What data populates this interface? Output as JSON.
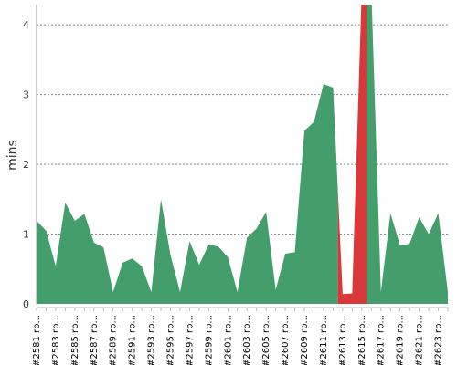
{
  "chart_data": {
    "type": "area",
    "ylabel": "mins",
    "categories": [
      "#2581 rp...",
      null,
      "#2583 rp...",
      null,
      "#2585 rp...",
      null,
      "#2587 rp...",
      null,
      "#2589 rp...",
      null,
      "#2591 rp...",
      null,
      "#2593 rp...",
      null,
      "#2595 rp...",
      null,
      "#2597 rp...",
      null,
      "#2599 rp...",
      null,
      "#2601 rp...",
      null,
      "#2603 rp...",
      null,
      "#2605 rp...",
      null,
      "#2607 rp...",
      null,
      "#2609 rp...",
      null,
      "#2611 rp...",
      null,
      "#2613 rp...",
      null,
      "#2615 rp...",
      null,
      "#2617 rp...",
      null,
      "#2619 rp...",
      null,
      "#2621 rp...",
      null,
      "#2623 rp...",
      null
    ],
    "series": [
      {
        "color": "#449e6c",
        "values": [
          1.19,
          1.05,
          0.54,
          1.45,
          1.19,
          1.29,
          0.88,
          0.81,
          0.17,
          0.59,
          0.65,
          0.54,
          0.17,
          1.5,
          0.7,
          0.17,
          0.9,
          0.56,
          0.85,
          0.82,
          0.67,
          0.17,
          0.95,
          1.08,
          1.32,
          0.2,
          0.72,
          0.74,
          2.48,
          2.61,
          3.15,
          3.1,
          null,
          null,
          null,
          4.5,
          0.17,
          1.3,
          0.84,
          0.86,
          1.24,
          1.0,
          1.3,
          0.17
        ]
      },
      {
        "color": "#d9383a",
        "values": [
          null,
          null,
          null,
          null,
          null,
          null,
          null,
          null,
          null,
          null,
          null,
          null,
          null,
          null,
          null,
          null,
          null,
          null,
          null,
          null,
          null,
          null,
          null,
          null,
          null,
          null,
          null,
          null,
          null,
          null,
          null,
          null,
          0.14,
          0.15,
          4.5,
          null,
          null,
          null,
          null,
          null,
          null,
          null,
          null,
          null
        ]
      }
    ],
    "ylim": [
      0,
      4.29
    ],
    "yticks": [
      0,
      1,
      2,
      3,
      4
    ],
    "grid": true
  }
}
